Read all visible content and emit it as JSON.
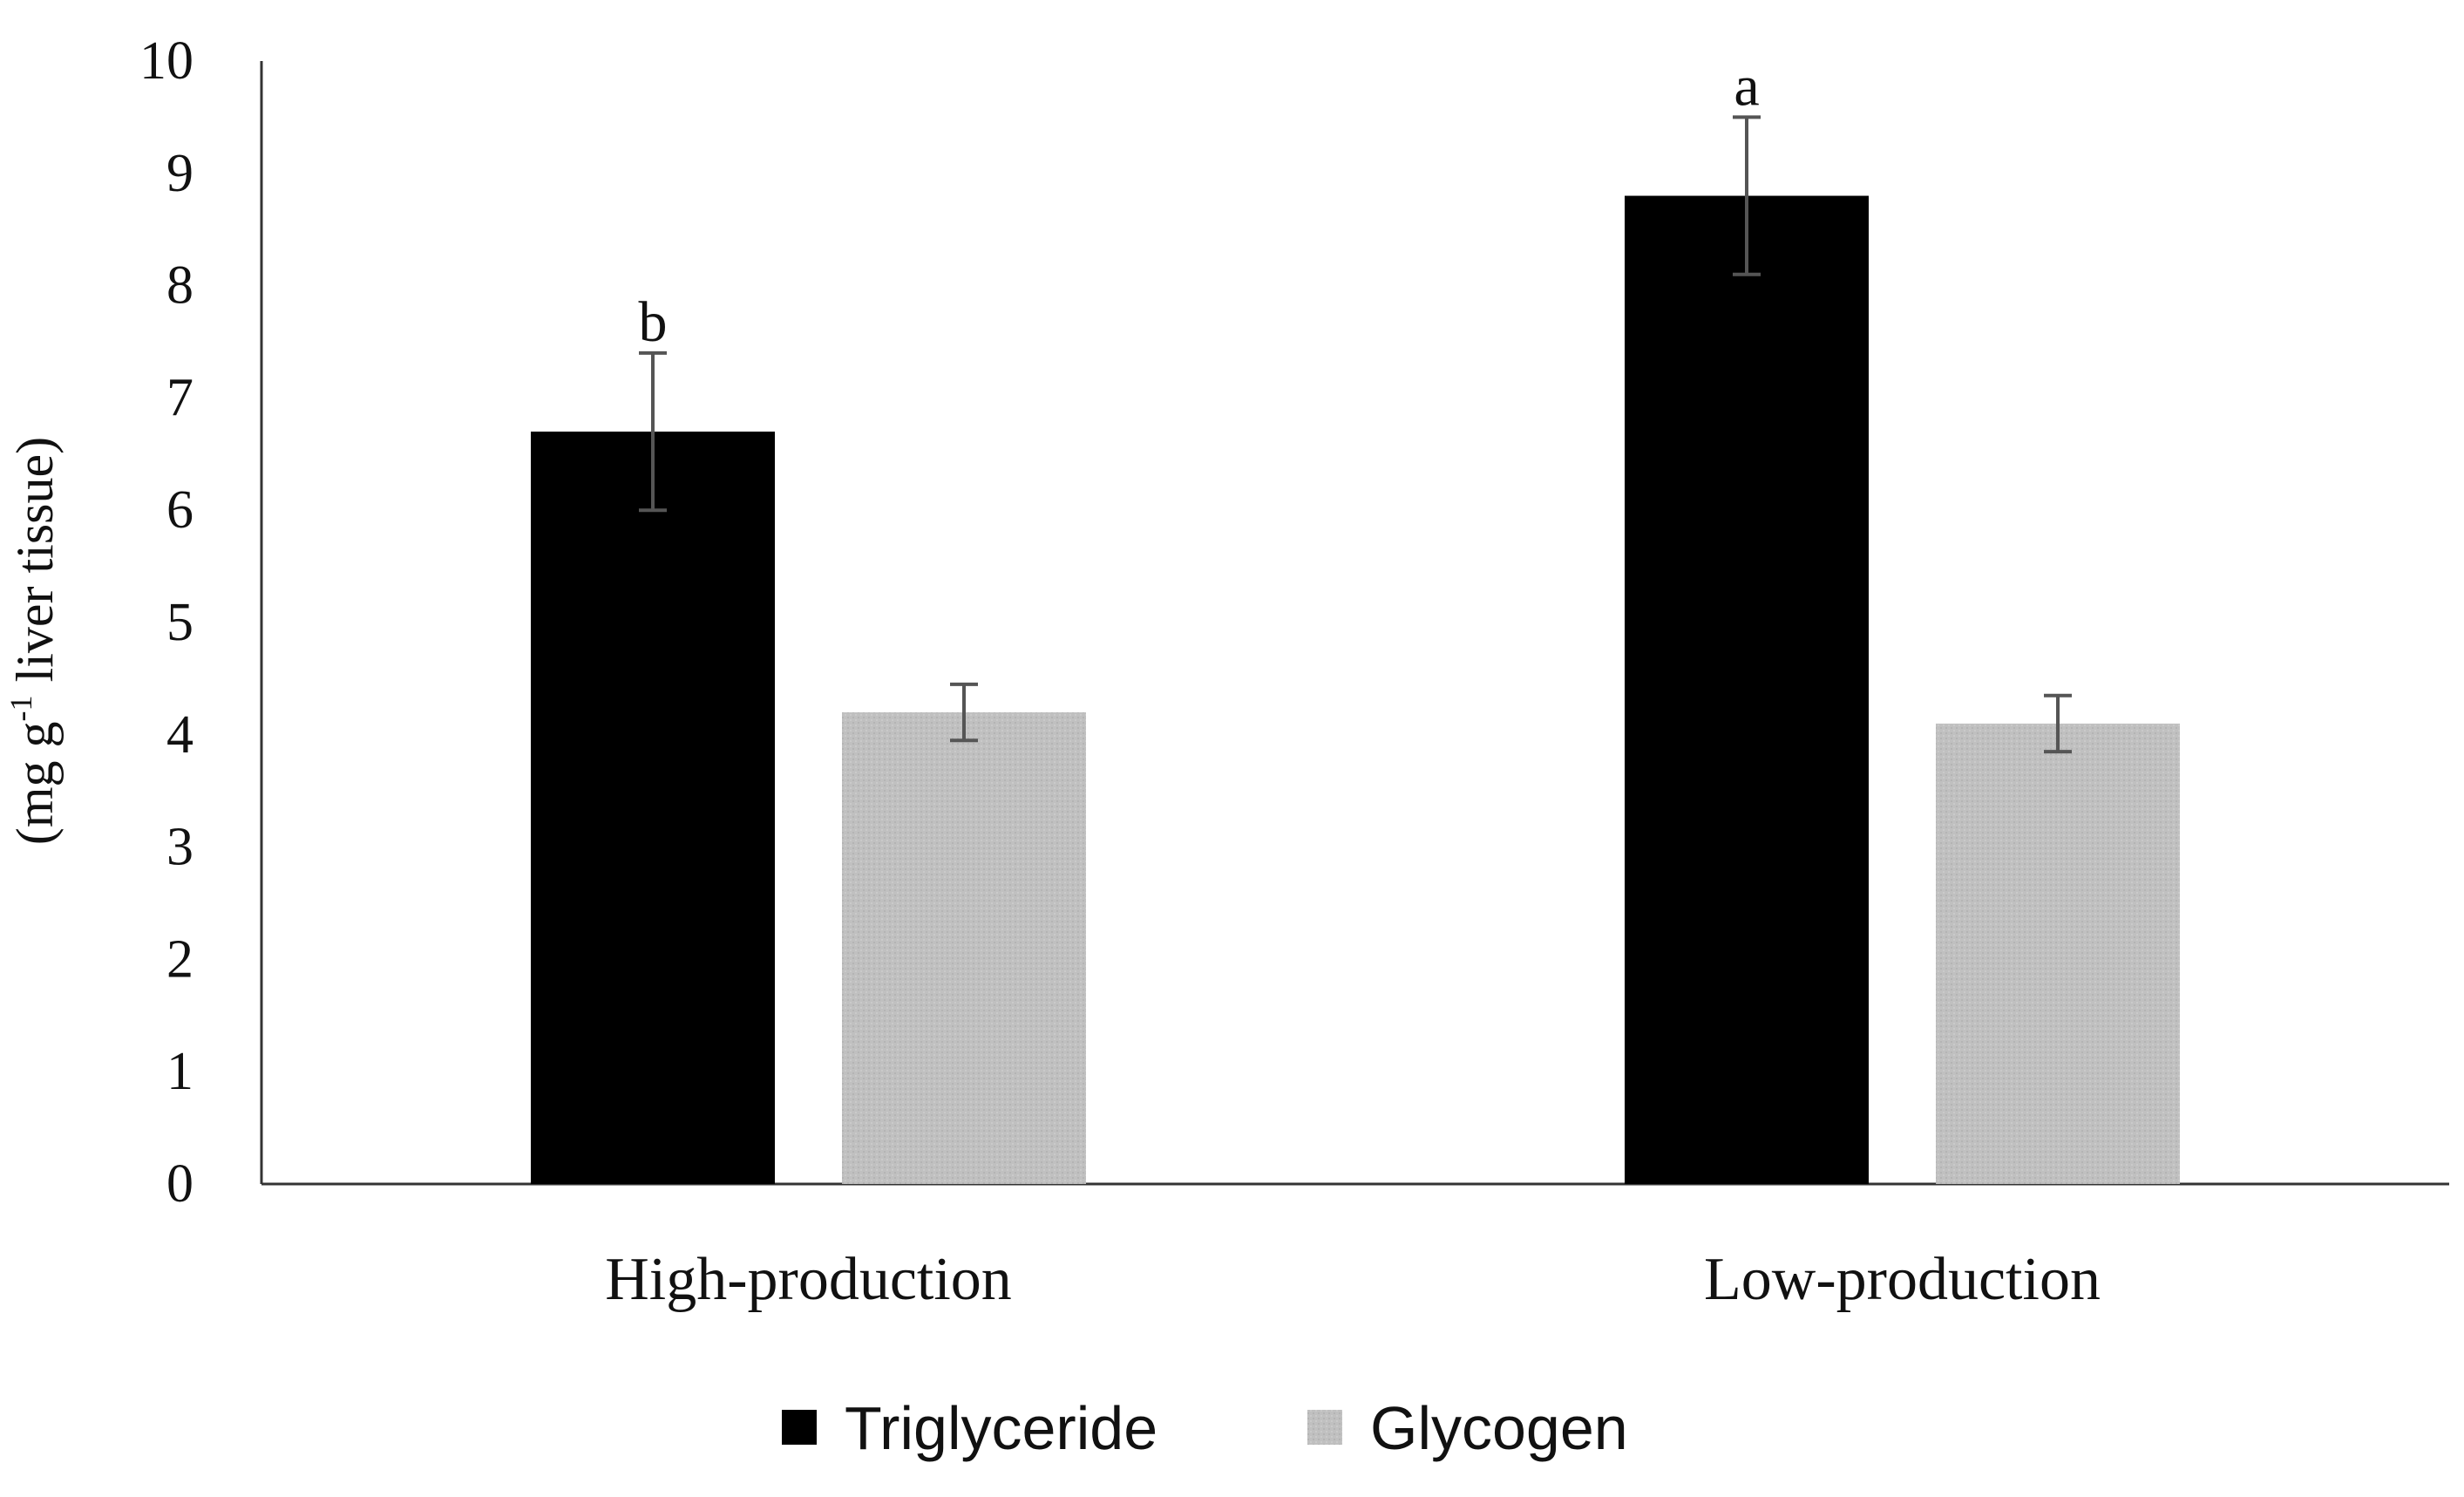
{
  "chart_data": {
    "type": "bar",
    "title": "",
    "xlabel": "",
    "ylabel": {
      "prefix": "(mg g",
      "superscript": "-1",
      "suffix": " liver tissue)"
    },
    "ylim": [
      0,
      10
    ],
    "yticks": [
      "0",
      "1",
      "2",
      "3",
      "4",
      "5",
      "6",
      "7",
      "8",
      "9",
      "10"
    ],
    "categories": [
      "High-production",
      "Low-production"
    ],
    "series": [
      {
        "name": "Triglyceride",
        "color": "#000000",
        "values": [
          6.7,
          8.8
        ],
        "errors": [
          0.7,
          0.7
        ],
        "labels": [
          "b",
          "a"
        ]
      },
      {
        "name": "Glycogen",
        "color": "#c0c0c0",
        "values": [
          4.2,
          4.1
        ],
        "errors": [
          0.25,
          0.25
        ],
        "labels": [
          "",
          ""
        ]
      }
    ],
    "legend_position": "bottom-center",
    "grid": false
  }
}
